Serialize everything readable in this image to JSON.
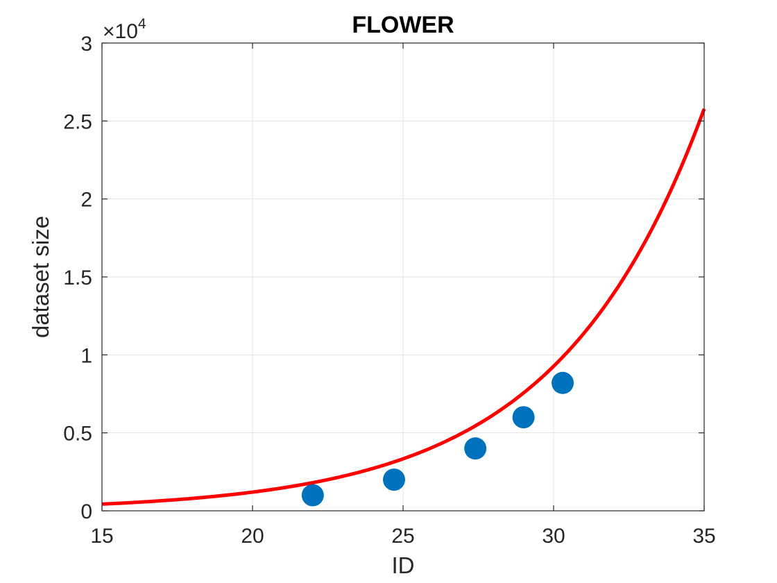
{
  "chart_data": {
    "type": "scatter",
    "title": "FLOWER",
    "xlabel": "ID",
    "ylabel": "dataset size",
    "xlim": [
      15,
      35
    ],
    "ylim": [
      0,
      30000
    ],
    "x_ticks": [
      15,
      20,
      25,
      30,
      35
    ],
    "x_tick_labels": [
      "15",
      "20",
      "25",
      "30",
      "35"
    ],
    "y_ticks": [
      0,
      5000,
      10000,
      15000,
      20000,
      25000,
      30000
    ],
    "y_tick_labels": [
      "0",
      "0.5",
      "1",
      "1.5",
      "2",
      "2.5",
      "3"
    ],
    "y_exponent_label": "×10",
    "y_exponent_power": "4",
    "grid": true,
    "series": [
      {
        "type": "scatter",
        "color": "#0072BD",
        "x": [
          22.0,
          24.7,
          27.4,
          29.0,
          30.3
        ],
        "y": [
          1000,
          2000,
          4000,
          6000,
          8200
        ]
      },
      {
        "type": "line",
        "color": "#FF0000",
        "fit": {
          "a": 20.08,
          "b": 0.2045
        }
      }
    ]
  }
}
